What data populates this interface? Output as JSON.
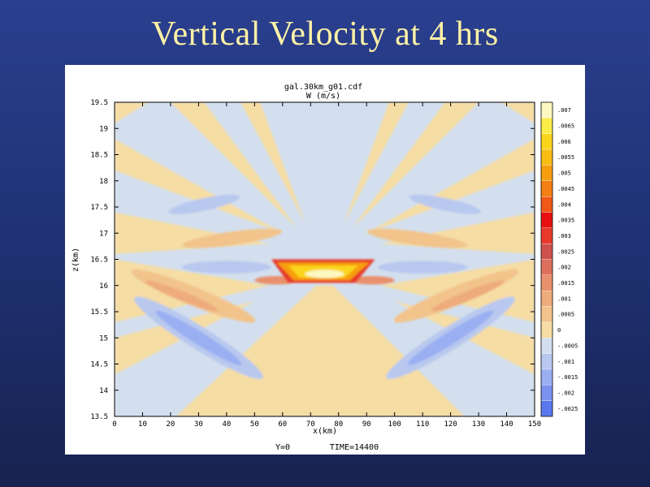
{
  "slide": {
    "title": "Vertical Velocity at 4 hrs"
  },
  "chart_data": {
    "type": "heatmap",
    "title": "gal.30km_g01.cdf",
    "subtitle": "W (m/s)",
    "xlabel": "x(km)",
    "ylabel": "z(km)",
    "footer_left": "Y=0",
    "footer_right": "TIME=14400",
    "xlim": [
      0,
      150
    ],
    "ylim": [
      13.5,
      19.5
    ],
    "x_ticks": [
      0,
      10,
      20,
      30,
      40,
      50,
      60,
      70,
      80,
      90,
      100,
      110,
      120,
      130,
      140,
      150
    ],
    "x_tick_labels": [
      "0",
      "10",
      "20",
      "30",
      "40",
      "50",
      "60",
      "70",
      "80",
      "90",
      "100",
      "110",
      "120",
      "130",
      "140",
      "150"
    ],
    "y_ticks": [
      13.5,
      14,
      14.5,
      15,
      15.5,
      16,
      16.5,
      17,
      17.5,
      18,
      18.5,
      19,
      19.5
    ],
    "y_tick_labels": [
      "13.5",
      "14",
      "14.5",
      "15",
      "15.5",
      "16",
      "16.5",
      "17",
      "17.5",
      "18",
      "18.5",
      "19",
      "19.5"
    ],
    "colorbar": {
      "levels": [
        -0.0025,
        -0.002,
        -0.0015,
        -0.001,
        -0.0005,
        0,
        0.0005,
        0.001,
        0.0015,
        0.002,
        0.0025,
        0.003,
        0.0035,
        0.004,
        0.0045,
        0.005,
        0.0055,
        0.006,
        0.0065,
        0.007
      ],
      "labels": [
        "-.0025",
        "-.002",
        "-.0015",
        "-.001",
        "-.0005",
        "0",
        ".0005",
        ".001",
        ".0015",
        ".002",
        ".0025",
        ".003",
        ".0035",
        ".004",
        ".0045",
        ".005",
        ".0055",
        ".006",
        ".0065",
        ".007"
      ],
      "colors": [
        "#5a78ee",
        "#7b92f0",
        "#9aaef2",
        "#b8c8ef",
        "#d3dfee",
        "#f5dda4",
        "#f2c48c",
        "#eeab7c",
        "#e8906c",
        "#dd6f5c",
        "#cf514e",
        "#e83a2b",
        "#e81010",
        "#f05818",
        "#f47f12",
        "#f79e10",
        "#f9bc12",
        "#fad51c",
        "#fbec4a",
        "#fdf8c0"
      ]
    },
    "field_description_note": null
  }
}
